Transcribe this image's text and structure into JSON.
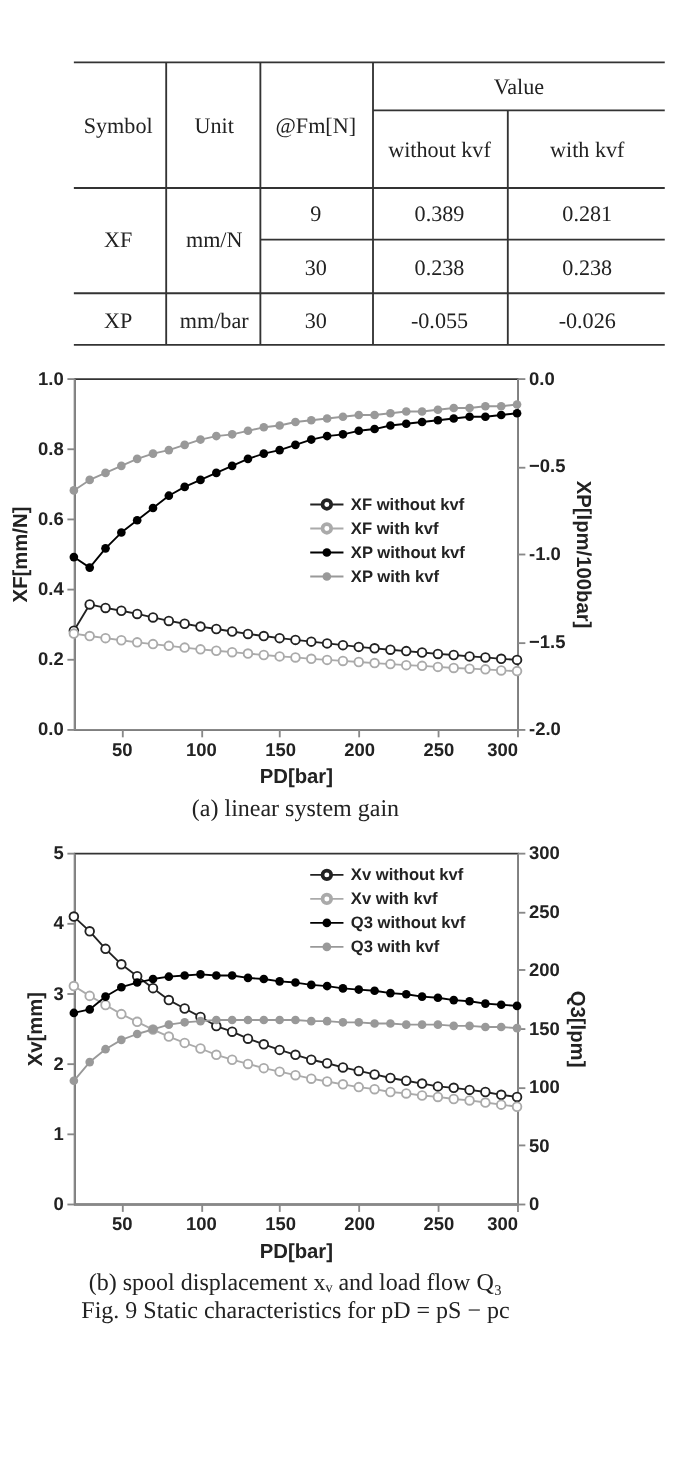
{
  "chart_data": [
    {
      "type": "other",
      "annotations": [
        "Symbol",
        "Unit",
        "@Fm[N]",
        "Value",
        "without kvf",
        "with kvf",
        "XF",
        "mm/N",
        "9",
        "0.389",
        "0.281",
        "30",
        "0.238",
        "0.238",
        "XP",
        "mm/bar",
        "30",
        "-0.055",
        "-0.026"
      ]
    },
    {
      "type": "line",
      "xlabel": "PD[bar]",
      "ylabel": "XF[mm/N]",
      "y2label": "XP[lpm/100bar]",
      "annotations": [
        "(a)  linear system gain"
      ],
      "x": [
        20,
        30,
        40,
        50,
        60,
        70,
        80,
        90,
        100,
        110,
        120,
        130,
        140,
        150,
        160,
        170,
        180,
        190,
        200,
        210,
        220,
        230,
        240,
        250,
        260,
        270,
        280,
        290,
        300
      ],
      "xlim": [
        20,
        300
      ],
      "xticks": [
        50,
        100,
        150,
        200,
        250,
        300
      ],
      "ylim": [
        0,
        1
      ],
      "yticks": [
        {
          "value": 0,
          "label": "0.0"
        },
        0.2,
        0.4,
        0.6,
        0.8,
        {
          "value": 1,
          "label": "1.0"
        }
      ],
      "y2lim": [
        -2,
        0
      ],
      "y2ticks": [
        {
          "value": -2,
          "label": "-2.0"
        },
        -1.5,
        {
          "value": -1,
          "label": "-1.0"
        },
        -0.5,
        {
          "value": 0,
          "label": "0.0"
        }
      ],
      "grid": false,
      "legend": "right",
      "marker": "circle",
      "line_style": "solid",
      "series": [
        {
          "name": "XF without kvf",
          "color": "#222222",
          "values": [
            0.28,
            0.355,
            0.345,
            0.337,
            0.328,
            0.318,
            0.308,
            0.3,
            0.292,
            0.285,
            0.278,
            0.271,
            0.265,
            0.259,
            0.254,
            0.249,
            0.244,
            0.239,
            0.234,
            0.23,
            0.226,
            0.222,
            0.218,
            0.214,
            0.211,
            0.207,
            0.204,
            0.2,
            0.197
          ]
        },
        {
          "name": "XF with kvf",
          "color": "#aaaaaa",
          "values": [
            0.272,
            0.265,
            0.259,
            0.253,
            0.247,
            0.242,
            0.237,
            0.232,
            0.227,
            0.223,
            0.219,
            0.215,
            0.211,
            0.207,
            0.204,
            0.2,
            0.197,
            0.194,
            0.191,
            0.188,
            0.185,
            0.182,
            0.18,
            0.177,
            0.174,
            0.172,
            0.17,
            0.167,
            0.165
          ]
        },
        {
          "name": "XP without kvf",
          "color": "#000000",
          "axis": "y2",
          "values": [
            -1.02,
            -1.08,
            -0.97,
            -0.88,
            -0.81,
            -0.74,
            -0.67,
            -0.62,
            -0.58,
            -0.54,
            -0.5,
            -0.46,
            -0.43,
            -0.41,
            -0.38,
            -0.35,
            -0.33,
            -0.32,
            -0.3,
            -0.29,
            -0.27,
            -0.26,
            -0.25,
            -0.24,
            -0.23,
            -0.22,
            -0.22,
            -0.21,
            -0.2
          ]
        },
        {
          "name": "XP with kvf",
          "color": "#999999",
          "axis": "y2",
          "values": [
            -0.64,
            -0.58,
            -0.54,
            -0.5,
            -0.46,
            -0.43,
            -0.41,
            -0.38,
            -0.35,
            -0.33,
            -0.32,
            -0.3,
            -0.28,
            -0.27,
            -0.25,
            -0.24,
            -0.23,
            -0.22,
            -0.21,
            -0.21,
            -0.2,
            -0.19,
            -0.19,
            -0.18,
            -0.17,
            -0.17,
            -0.16,
            -0.16,
            -0.15
          ]
        }
      ]
    },
    {
      "type": "line",
      "xlabel": "PD[bar]",
      "ylabel": "Xv[mm]",
      "y2label": "Q3[lpm]",
      "annotations": [
        "(b) spool displacement xᵥ and load flow Q₃",
        "Fig. 9 Static characteristics for pD = pS − pc"
      ],
      "x": [
        20,
        30,
        40,
        50,
        60,
        70,
        80,
        90,
        100,
        110,
        120,
        130,
        140,
        150,
        160,
        170,
        180,
        190,
        200,
        210,
        220,
        230,
        240,
        250,
        260,
        270,
        280,
        290,
        300
      ],
      "xlim": [
        20,
        300
      ],
      "xticks": [
        50,
        100,
        150,
        200,
        250,
        300
      ],
      "ylim": [
        0,
        5
      ],
      "yticks": [
        0,
        1,
        2,
        3,
        4,
        5
      ],
      "y2lim": [
        0,
        300
      ],
      "y2ticks": [
        0,
        50,
        100,
        150,
        200,
        250,
        300
      ],
      "grid": false,
      "legend": "top right",
      "marker": "circle",
      "line_style": "solid",
      "series": [
        {
          "name": "Xv without kvf",
          "color": "#222222",
          "values": [
            4.09,
            3.88,
            3.63,
            3.41,
            3.24,
            3.07,
            2.9,
            2.78,
            2.66,
            2.53,
            2.45,
            2.35,
            2.27,
            2.19,
            2.12,
            2.05,
            2.0,
            1.94,
            1.89,
            1.84,
            1.79,
            1.75,
            1.71,
            1.67,
            1.65,
            1.62,
            1.59,
            1.55,
            1.52
          ]
        },
        {
          "name": "Xv with kvf",
          "color": "#aaaaaa",
          "values": [
            3.1,
            2.96,
            2.83,
            2.7,
            2.59,
            2.48,
            2.38,
            2.29,
            2.21,
            2.12,
            2.05,
            1.99,
            1.93,
            1.88,
            1.83,
            1.78,
            1.74,
            1.7,
            1.66,
            1.63,
            1.59,
            1.57,
            1.54,
            1.52,
            1.49,
            1.47,
            1.44,
            1.41,
            1.38
          ]
        },
        {
          "name": "Q3 without kvf",
          "color": "#000000",
          "axis": "y2",
          "values": [
            163,
            166,
            177,
            185,
            189,
            192,
            194,
            195,
            196,
            195,
            195,
            193,
            192,
            190,
            189,
            187,
            186,
            184,
            183,
            182,
            180,
            179,
            177,
            176,
            174,
            173,
            171,
            170,
            169
          ]
        },
        {
          "name": "Q3 with kvf",
          "color": "#999999",
          "axis": "y2",
          "values": [
            105,
            121,
            132,
            140,
            145,
            149,
            153,
            155,
            156,
            157,
            157,
            157,
            157,
            157,
            157,
            156,
            156,
            155,
            155,
            154,
            154,
            153,
            153,
            153,
            152,
            152,
            151,
            151,
            150
          ]
        }
      ]
    }
  ]
}
